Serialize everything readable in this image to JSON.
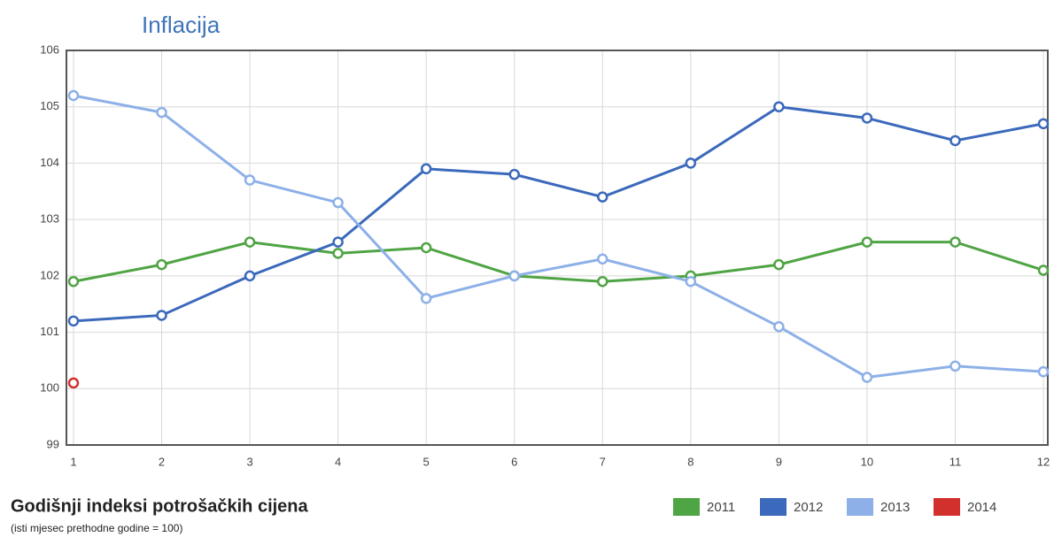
{
  "chart_data": {
    "type": "line",
    "title": "Inflacija",
    "subtitle": "Godišnji indeksi potrošačkih cijena",
    "note": "(isti mjesec prethodne godine = 100)",
    "x": [
      1,
      2,
      3,
      4,
      5,
      6,
      7,
      8,
      9,
      10,
      11,
      12
    ],
    "series": [
      {
        "name": "2011",
        "color": "#4fa444",
        "values": [
          101.9,
          102.2,
          102.6,
          102.4,
          102.5,
          102.0,
          101.9,
          102.0,
          102.2,
          102.6,
          102.6,
          102.1
        ]
      },
      {
        "name": "2012",
        "color": "#3b69bb",
        "values": [
          101.2,
          101.3,
          102.0,
          102.6,
          103.9,
          103.8,
          103.4,
          104.0,
          105.0,
          104.8,
          104.4,
          104.7
        ]
      },
      {
        "name": "2013",
        "color": "#8db0e8",
        "values": [
          105.2,
          104.9,
          103.7,
          103.3,
          101.6,
          102.0,
          102.3,
          101.9,
          101.1,
          100.2,
          100.4,
          100.3
        ]
      },
      {
        "name": "2014",
        "color": "#d2302c",
        "values": [
          100.1,
          null,
          null,
          null,
          null,
          null,
          null,
          null,
          null,
          null,
          null,
          null
        ]
      }
    ],
    "xlim": [
      0.92,
      12.05
    ],
    "xticks": [
      1,
      2,
      3,
      4,
      5,
      6,
      7,
      8,
      9,
      10,
      11,
      12
    ],
    "ylim": [
      99,
      106
    ],
    "yticks": [
      99,
      100,
      101,
      102,
      103,
      104,
      105,
      106
    ],
    "grid": true,
    "legend": "bottom-right"
  }
}
